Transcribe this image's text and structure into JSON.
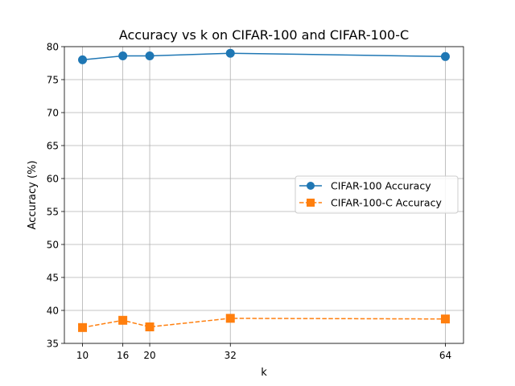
{
  "chart_data": {
    "type": "line",
    "title": "Accuracy vs k on CIFAR-100 and CIFAR-100-C",
    "xlabel": "k",
    "ylabel": "Accuracy (%)",
    "x": [
      10,
      16,
      20,
      32,
      64
    ],
    "xticks": [
      "10",
      "16",
      "20",
      "32",
      "64"
    ],
    "yticks": [
      "35",
      "40",
      "45",
      "50",
      "55",
      "60",
      "65",
      "70",
      "75",
      "80"
    ],
    "xlim": [
      7.3,
      66.7
    ],
    "ylim": [
      35,
      80
    ],
    "grid": true,
    "legend_position": "center-right",
    "series": [
      {
        "name": "CIFAR-100 Accuracy",
        "values": [
          78.0,
          78.6,
          78.6,
          79.0,
          78.5
        ],
        "color": "#1f77b4",
        "linestyle": "solid",
        "marker": "circle"
      },
      {
        "name": "CIFAR-100-C Accuracy",
        "values": [
          37.4,
          38.5,
          37.5,
          38.8,
          38.7
        ],
        "color": "#ff7f0e",
        "linestyle": "dashed",
        "marker": "square"
      }
    ]
  }
}
